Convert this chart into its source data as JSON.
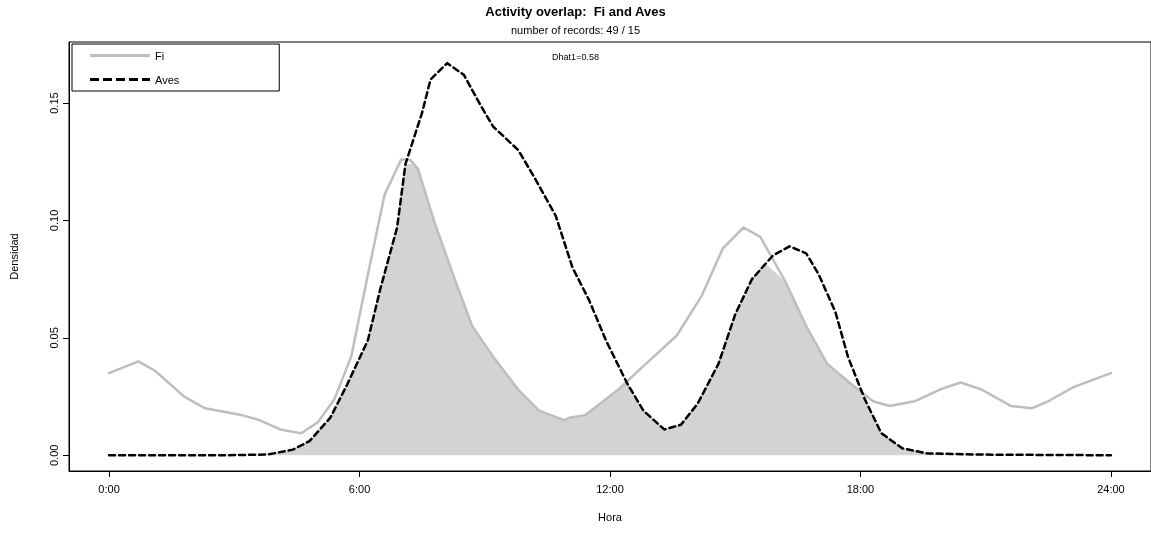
{
  "chart_data": {
    "type": "line",
    "title": "Activity overlap:  Fi and Aves",
    "subtitle": "number of records: 49 / 15",
    "xlabel": "Hora",
    "ylabel": "Densidad",
    "annotations": [
      "Dhat1=0.58"
    ],
    "xlim": [
      -0.96,
      24.96
    ],
    "xticks": [
      {
        "value": 0,
        "label": "0:00"
      },
      {
        "value": 6,
        "label": "6:00"
      },
      {
        "value": 12,
        "label": "12:00"
      },
      {
        "value": 18,
        "label": "18:00"
      },
      {
        "value": 24,
        "label": "24:00"
      }
    ],
    "ylim": [
      -0.0067,
      0.176
    ],
    "yticks": [
      {
        "value": 0,
        "label": "0.00"
      },
      {
        "value": 0.05,
        "label": "0.05"
      },
      {
        "value": 0.1,
        "label": "0.10"
      },
      {
        "value": 0.15,
        "label": "0.15"
      }
    ],
    "grid": false,
    "legend": "top left",
    "marker": "none",
    "series": [
      {
        "type": "area",
        "color": "#d3d3d3",
        "x": [
          0,
          2.7,
          3.8,
          4.4,
          4.8,
          5.3,
          5.7,
          6.2,
          6.5,
          6.9,
          7.1,
          7.3,
          7.4,
          7.8,
          8.3,
          8.7,
          9.2,
          9.8,
          10.3,
          10.9,
          11.03,
          11.4,
          12.2,
          12.4,
          12.8,
          13.3,
          13.7,
          14.1,
          14.6,
          15.0,
          15.4,
          15.7,
          16.2,
          16.7,
          17.2,
          17.8,
          17.9,
          18.1,
          18.5,
          19.0,
          19.6,
          20.8,
          24
        ],
        "values": [
          0,
          0,
          0.0003,
          0.0024,
          0.006,
          0.016,
          0.03,
          0.049,
          0.071,
          0.097,
          0.124,
          0.124,
          0.122,
          0.099,
          0.074,
          0.055,
          0.042,
          0.028,
          0.019,
          0.015,
          0.016,
          0.017,
          0.028,
          0.031,
          0.019,
          0.011,
          0.013,
          0.022,
          0.039,
          0.06,
          0.075,
          0.082,
          0.074,
          0.055,
          0.039,
          0.03,
          0.029,
          0.024,
          0.0094,
          0.003,
          0.0008,
          0.0003,
          0
        ]
      },
      {
        "name": "Fi",
        "color": "#bebebe",
        "line_style": "solid",
        "x": [
          0,
          0.7,
          1.1,
          1.8,
          2.3,
          3.2,
          3.6,
          4.1,
          4.6,
          5.0,
          5.4,
          5.8,
          6.2,
          6.6,
          7.0,
          7.2,
          7.4,
          7.8,
          8.3,
          8.7,
          9.2,
          9.8,
          10.3,
          10.9,
          11.03,
          11.4,
          12.2,
          12.8,
          13.6,
          14.2,
          14.7,
          15.2,
          15.6,
          16.2,
          16.7,
          17.2,
          17.8,
          18.3,
          18.7,
          19.3,
          19.9,
          20.4,
          20.9,
          21.6,
          22.1,
          22.5,
          23.1,
          24
        ],
        "values": [
          0.035,
          0.04,
          0.036,
          0.025,
          0.02,
          0.017,
          0.015,
          0.011,
          0.0094,
          0.014,
          0.024,
          0.042,
          0.077,
          0.111,
          0.126,
          0.126,
          0.122,
          0.099,
          0.074,
          0.055,
          0.042,
          0.028,
          0.019,
          0.015,
          0.016,
          0.017,
          0.028,
          0.038,
          0.051,
          0.068,
          0.088,
          0.097,
          0.093,
          0.074,
          0.055,
          0.039,
          0.03,
          0.023,
          0.021,
          0.023,
          0.028,
          0.031,
          0.028,
          0.021,
          0.02,
          0.023,
          0.029,
          0.035
        ]
      },
      {
        "name": "Aves",
        "color": "#000000",
        "line_style": "dashed",
        "x": [
          0,
          2.7,
          3.8,
          4.4,
          4.8,
          5.3,
          5.7,
          6.2,
          6.5,
          6.9,
          7.1,
          7.5,
          7.7,
          8.1,
          8.5,
          8.9,
          9.2,
          9.8,
          10.2,
          10.7,
          11.1,
          11.5,
          11.9,
          12.4,
          12.8,
          13.3,
          13.7,
          14.1,
          14.6,
          15.0,
          15.4,
          15.9,
          16.3,
          16.7,
          17.0,
          17.4,
          17.7,
          18.1,
          18.5,
          19.0,
          19.6,
          20.8,
          24
        ],
        "values": [
          0,
          0,
          0.0003,
          0.0024,
          0.006,
          0.016,
          0.03,
          0.049,
          0.071,
          0.097,
          0.124,
          0.146,
          0.16,
          0.167,
          0.162,
          0.149,
          0.14,
          0.13,
          0.118,
          0.102,
          0.08,
          0.066,
          0.049,
          0.031,
          0.019,
          0.011,
          0.013,
          0.022,
          0.039,
          0.06,
          0.075,
          0.085,
          0.089,
          0.086,
          0.077,
          0.061,
          0.042,
          0.024,
          0.0094,
          0.003,
          0.0008,
          0.0003,
          0
        ]
      }
    ]
  }
}
